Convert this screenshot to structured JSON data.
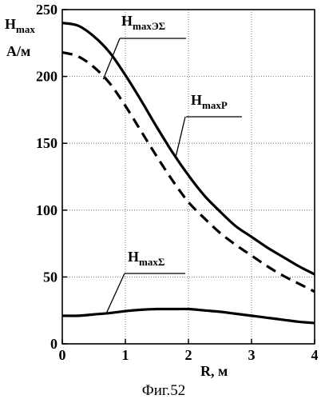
{
  "chart_data": {
    "type": "line",
    "caption": "Фиг.52",
    "ylabel": {
      "main": "H",
      "sub": "max",
      "unit": "А/м"
    },
    "xlabel": "R, м",
    "xlim": [
      0,
      4
    ],
    "ylim": [
      0,
      250
    ],
    "x_ticks": [
      "0",
      "1",
      "2",
      "3",
      "4"
    ],
    "y_ticks": [
      "0",
      "50",
      "100",
      "150",
      "200",
      "250"
    ],
    "grid": "dotted",
    "series": [
      {
        "name": "H maxP",
        "label_main": "H",
        "label_sub": "maxP",
        "style": "solid",
        "x": [
          0,
          0.25,
          0.5,
          0.75,
          1.0,
          1.25,
          1.5,
          1.75,
          2.0,
          2.25,
          2.5,
          2.75,
          3.0,
          3.25,
          3.5,
          3.75,
          4.0
        ],
        "y": [
          240,
          238,
          230,
          218,
          201,
          182,
          162,
          143,
          126,
          111,
          99,
          88,
          80,
          72,
          65,
          58,
          52
        ]
      },
      {
        "name": "H maxЭΣ",
        "label_main": "H",
        "label_sub": "maxЭΣ",
        "style": "dashed",
        "x": [
          0,
          0.25,
          0.5,
          0.75,
          1.0,
          1.25,
          1.5,
          1.75,
          2.0,
          2.25,
          2.5,
          2.75,
          3.0,
          3.25,
          3.5,
          3.75,
          4.0
        ],
        "y": [
          218,
          215,
          207,
          195,
          178,
          159,
          140,
          122,
          106,
          94,
          83,
          74,
          66,
          58,
          51,
          45,
          39
        ]
      },
      {
        "name": "H maxΣ",
        "label_main": "H",
        "label_sub": "maxΣ",
        "style": "solid",
        "x": [
          0,
          0.25,
          0.5,
          0.75,
          1.0,
          1.25,
          1.5,
          1.75,
          2.0,
          2.25,
          2.5,
          2.75,
          3.0,
          3.25,
          3.5,
          3.75,
          4.0
        ],
        "y": [
          21,
          21,
          22,
          23,
          24.5,
          25.5,
          26,
          26,
          26,
          25,
          24,
          22.5,
          21,
          19.5,
          18,
          16.5,
          15.5
        ]
      }
    ]
  }
}
